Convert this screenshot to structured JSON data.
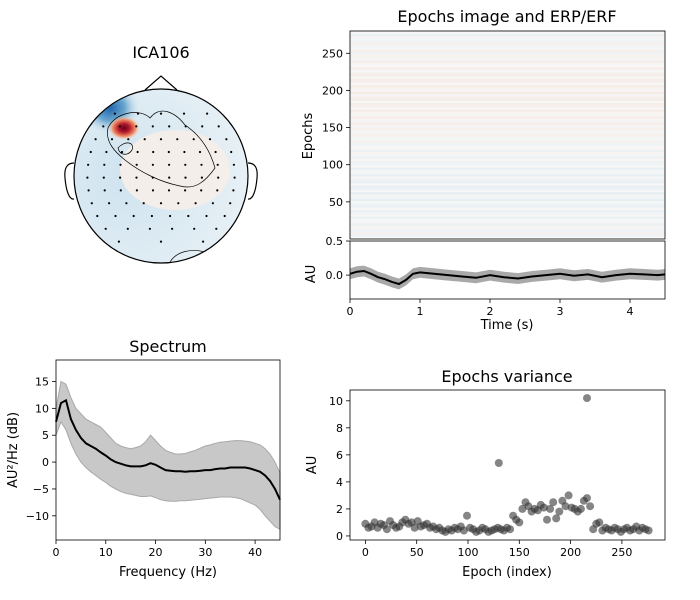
{
  "figure": {
    "background": "#ffffff"
  },
  "chart_data": [
    {
      "id": "topomap",
      "type": "topomap",
      "title": "ICA106",
      "colors": {
        "negative": "#2166ac",
        "positive": "#b2182b",
        "neutral": "#f7f7f7",
        "outline": "#000000"
      }
    },
    {
      "id": "epochs_image",
      "type": "heatmap",
      "title": "Epochs image and ERP/ERF",
      "ylabel": "Epochs",
      "yticks": [
        50,
        100,
        150,
        200,
        250
      ],
      "ylim": [
        0,
        280
      ],
      "xlim": [
        0,
        4.5
      ],
      "colors": {
        "negative": "#92c5de",
        "positive": "#f4a582",
        "neutral": "#f7f7f7"
      }
    },
    {
      "id": "erp",
      "type": "line",
      "xlabel": "Time (s)",
      "ylabel": "AU",
      "xlim": [
        0,
        4.5
      ],
      "ylim": [
        -0.35,
        0.5
      ],
      "xticks": [
        0,
        1,
        2,
        3,
        4
      ],
      "yticks": [
        0.0,
        0.5
      ],
      "ytick_labels": [
        "0.0",
        "0.5"
      ],
      "x": [
        0,
        0.1,
        0.2,
        0.3,
        0.4,
        0.5,
        0.6,
        0.7,
        0.8,
        0.9,
        1.0,
        1.2,
        1.4,
        1.6,
        1.8,
        2.0,
        2.2,
        2.4,
        2.6,
        2.8,
        3.0,
        3.2,
        3.4,
        3.6,
        3.8,
        4.0,
        4.2,
        4.4,
        4.5
      ],
      "values": [
        0.02,
        0.05,
        0.06,
        0.02,
        -0.03,
        -0.06,
        -0.1,
        -0.13,
        -0.07,
        0.02,
        0.04,
        0.02,
        0.0,
        -0.02,
        -0.04,
        0.0,
        -0.03,
        -0.05,
        -0.02,
        0.0,
        0.02,
        -0.01,
        0.01,
        -0.03,
        0.0,
        0.02,
        0.01,
        0.0,
        0.01
      ],
      "band_halfwidth": 0.08,
      "colors": {
        "mean": "#000000",
        "band": "#a0a0a0"
      }
    },
    {
      "id": "spectrum",
      "type": "area",
      "title": "Spectrum",
      "xlabel": "Frequency (Hz)",
      "ylabel": "AU²/Hz (dB)",
      "xlim": [
        0,
        45
      ],
      "ylim": [
        -14.5,
        19
      ],
      "xticks": [
        0,
        10,
        20,
        30,
        40
      ],
      "yticks": [
        -10,
        -5,
        0,
        5,
        10,
        15
      ],
      "ytick_labels": [
        "−10",
        "−5",
        "0",
        "5",
        "10",
        "15"
      ],
      "x": [
        0,
        1,
        2,
        3,
        4,
        5,
        6,
        7,
        8,
        9,
        10,
        11,
        12,
        13,
        14,
        15,
        16,
        17,
        18,
        19,
        20,
        21,
        22,
        23,
        24,
        25,
        26,
        27,
        28,
        29,
        30,
        31,
        32,
        33,
        34,
        35,
        36,
        37,
        38,
        39,
        40,
        41,
        42,
        43,
        44,
        45
      ],
      "values": [
        7.5,
        11,
        11.5,
        8,
        6,
        4.5,
        3.5,
        3,
        2.5,
        1.8,
        1.2,
        0.5,
        0,
        -0.3,
        -0.6,
        -0.8,
        -0.8,
        -0.8,
        -0.6,
        -0.2,
        -0.5,
        -1.0,
        -1.5,
        -1.6,
        -1.7,
        -1.7,
        -1.8,
        -1.7,
        -1.7,
        -1.6,
        -1.5,
        -1.5,
        -1.3,
        -1.2,
        -1.2,
        -1.0,
        -1.0,
        -1.0,
        -1.0,
        -1.2,
        -1.5,
        -1.8,
        -2.5,
        -3.5,
        -5,
        -7
      ],
      "upper": [
        10,
        15,
        14.5,
        12,
        10,
        9,
        8,
        7.5,
        7,
        6.5,
        5.5,
        4.5,
        3.5,
        3,
        2.7,
        2.5,
        2.7,
        3,
        3.8,
        5,
        4,
        3,
        2.2,
        1.8,
        1.5,
        1.5,
        1.6,
        1.9,
        2.2,
        2.6,
        3.0,
        3.2,
        3.5,
        3.7,
        3.8,
        3.9,
        4.0,
        4.0,
        3.9,
        3.8,
        3.5,
        3.2,
        2.5,
        1.5,
        0,
        -2
      ],
      "lower": [
        5,
        7.5,
        6,
        3.5,
        1.5,
        0,
        -1,
        -1.8,
        -2.5,
        -3.2,
        -3.8,
        -4.5,
        -5,
        -5.5,
        -5.8,
        -6,
        -6.2,
        -6.4,
        -6.4,
        -6.3,
        -6.6,
        -7,
        -7.2,
        -7.3,
        -7.3,
        -7.2,
        -7.2,
        -7.1,
        -7,
        -6.9,
        -6.8,
        -6.7,
        -6.6,
        -6.5,
        -6.5,
        -6.5,
        -6.6,
        -6.8,
        -7.2,
        -7.6,
        -8,
        -8.8,
        -10,
        -11,
        -12,
        -12.5
      ],
      "colors": {
        "mean": "#000000",
        "band": "#c8c8c8",
        "band_edge": "#a8a8a8"
      }
    },
    {
      "id": "variance",
      "type": "scatter",
      "title": "Epochs variance",
      "xlabel": "Epoch (index)",
      "ylabel": "AU",
      "xlim": [
        -15,
        292
      ],
      "ylim": [
        -0.3,
        10.8
      ],
      "xticks": [
        0,
        50,
        100,
        150,
        200,
        250
      ],
      "yticks": [
        0,
        2,
        4,
        6,
        8,
        10
      ],
      "x": [
        0,
        3,
        6,
        9,
        12,
        15,
        18,
        21,
        24,
        27,
        30,
        33,
        36,
        39,
        42,
        45,
        48,
        51,
        54,
        57,
        60,
        63,
        66,
        69,
        72,
        75,
        78,
        81,
        84,
        87,
        90,
        93,
        96,
        99,
        102,
        105,
        108,
        111,
        114,
        117,
        120,
        123,
        126,
        129,
        132,
        135,
        138,
        141,
        144,
        147,
        150,
        153,
        156,
        159,
        162,
        165,
        168,
        171,
        174,
        177,
        180,
        183,
        186,
        189,
        192,
        195,
        198,
        201,
        204,
        207,
        210,
        213,
        216,
        219,
        222,
        225,
        228,
        231,
        234,
        237,
        240,
        243,
        246,
        249,
        252,
        255,
        258,
        261,
        264,
        267,
        270,
        273,
        276
      ],
      "values": [
        0.9,
        0.6,
        0.7,
        1.0,
        0.6,
        0.9,
        0.8,
        0.5,
        1.1,
        0.8,
        0.6,
        0.7,
        1.0,
        1.2,
        0.9,
        1.0,
        0.6,
        1.1,
        0.7,
        0.8,
        0.9,
        0.6,
        0.7,
        0.5,
        0.6,
        0.4,
        0.3,
        0.5,
        0.4,
        0.6,
        0.5,
        0.7,
        0.4,
        1.5,
        0.6,
        0.5,
        0.3,
        0.4,
        0.6,
        0.5,
        0.3,
        0.4,
        0.5,
        0.6,
        0.5,
        0.4,
        0.6,
        0.5,
        1.5,
        1.2,
        1.0,
        2.0,
        2.5,
        2.2,
        1.8,
        2.0,
        1.9,
        2.3,
        2.1,
        1.2,
        2.0,
        2.5,
        1.3,
        1.8,
        2.6,
        2.2,
        3.0,
        2.1,
        2.0,
        1.8,
        2.0,
        2.6,
        2.8,
        2.2,
        0.5,
        0.9,
        1.0,
        0.4,
        0.6,
        0.5,
        0.4,
        0.6,
        0.5,
        0.3,
        0.5,
        0.6,
        0.4,
        0.5,
        0.7,
        0.4,
        0.6,
        0.5,
        0.4
      ],
      "outliers": {
        "x": [
          130,
          216
        ],
        "values": [
          5.4,
          10.2
        ]
      },
      "colors": {
        "marker": "#333333"
      }
    }
  ]
}
